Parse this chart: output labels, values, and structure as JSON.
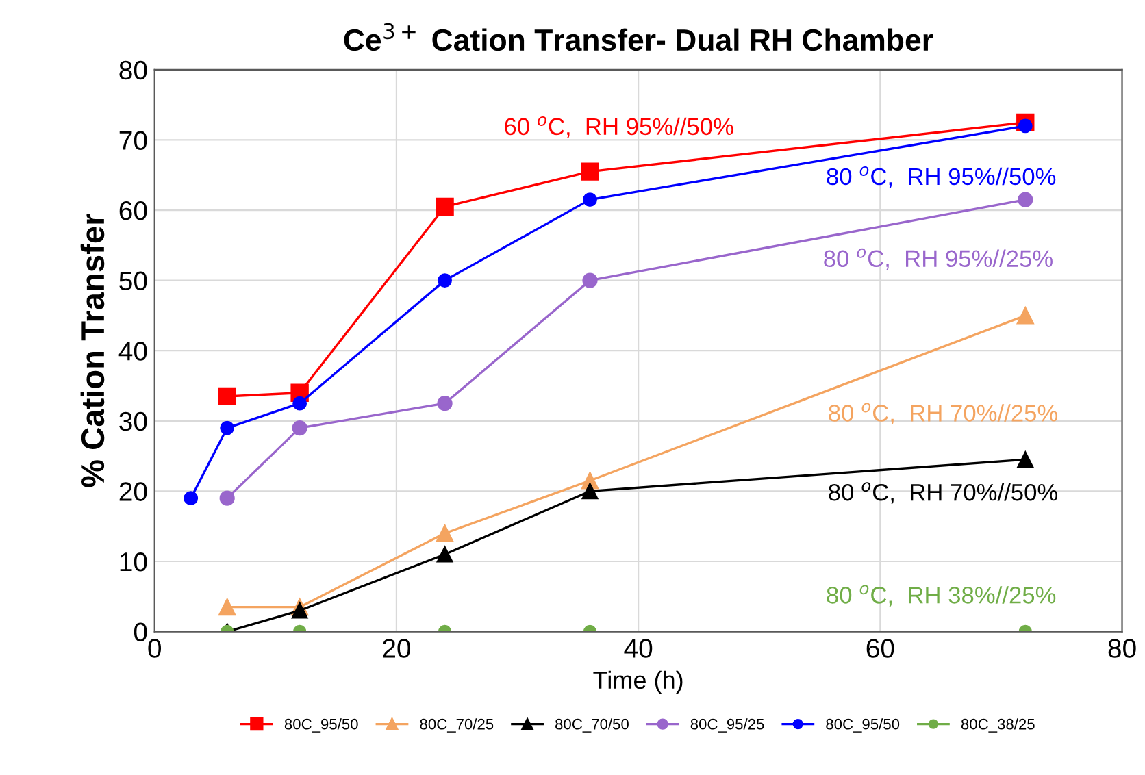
{
  "chart_data": {
    "type": "line",
    "title": "Ce$^{3+}$ Cation Transfer- Dual RH Chamber",
    "xlabel": "Time (h)",
    "ylabel": "% Cation Transfer",
    "xlim": [
      0,
      80
    ],
    "xticks": [
      0,
      20,
      40,
      60,
      80
    ],
    "ylim": [
      0,
      80
    ],
    "yticks": [
      0,
      10,
      20,
      30,
      40,
      50,
      60,
      70,
      80
    ],
    "grid": true,
    "legend": "bottom",
    "series": [
      {
        "name": "80C_95/50",
        "color": "#ff0000",
        "marker": "square",
        "x": [
          6,
          12,
          24,
          36,
          72
        ],
        "values": [
          33.5,
          34,
          60.5,
          65.5,
          72.5
        ]
      },
      {
        "name": "80C_70/25",
        "color": "#f4a460",
        "marker": "triangle",
        "x": [
          6,
          12,
          24,
          36,
          72
        ],
        "values": [
          3.5,
          3.5,
          14,
          21.5,
          45
        ]
      },
      {
        "name": "80C_70/50",
        "color": "#000000",
        "marker": "triangle",
        "x": [
          6,
          12,
          24,
          36,
          72
        ],
        "values": [
          0,
          3,
          11,
          20,
          24.5
        ]
      },
      {
        "name": "80C_95/25",
        "color": "#9966cc",
        "marker": "circle",
        "x": [
          6,
          12,
          24,
          36,
          72
        ],
        "values": [
          19,
          29,
          32.5,
          50,
          61.5
        ]
      },
      {
        "name": "80C_95/50",
        "color": "#0000ff",
        "marker": "circle",
        "x": [
          3,
          6,
          12,
          24,
          36,
          72
        ],
        "values": [
          19,
          29,
          32.5,
          50,
          61.5,
          72
        ]
      },
      {
        "name": "80C_38/25",
        "color": "#70ad47",
        "marker": "circle",
        "x": [
          6,
          12,
          24,
          36,
          72
        ],
        "values": [
          0,
          0,
          0,
          0,
          0
        ]
      }
    ],
    "annotations": [
      "60 $^{o}$C,  RH 95%//50%",
      "80 $^{o}$C,  RH 70%//25%",
      "80 $^{o}$C,  RH 70%//50%",
      "80 $^{o}$C,  RH 95%//25%",
      "80 $^{o}$C,  RH 95%//50%",
      "80 $^{o}$C,  RH 38%//25%"
    ]
  }
}
